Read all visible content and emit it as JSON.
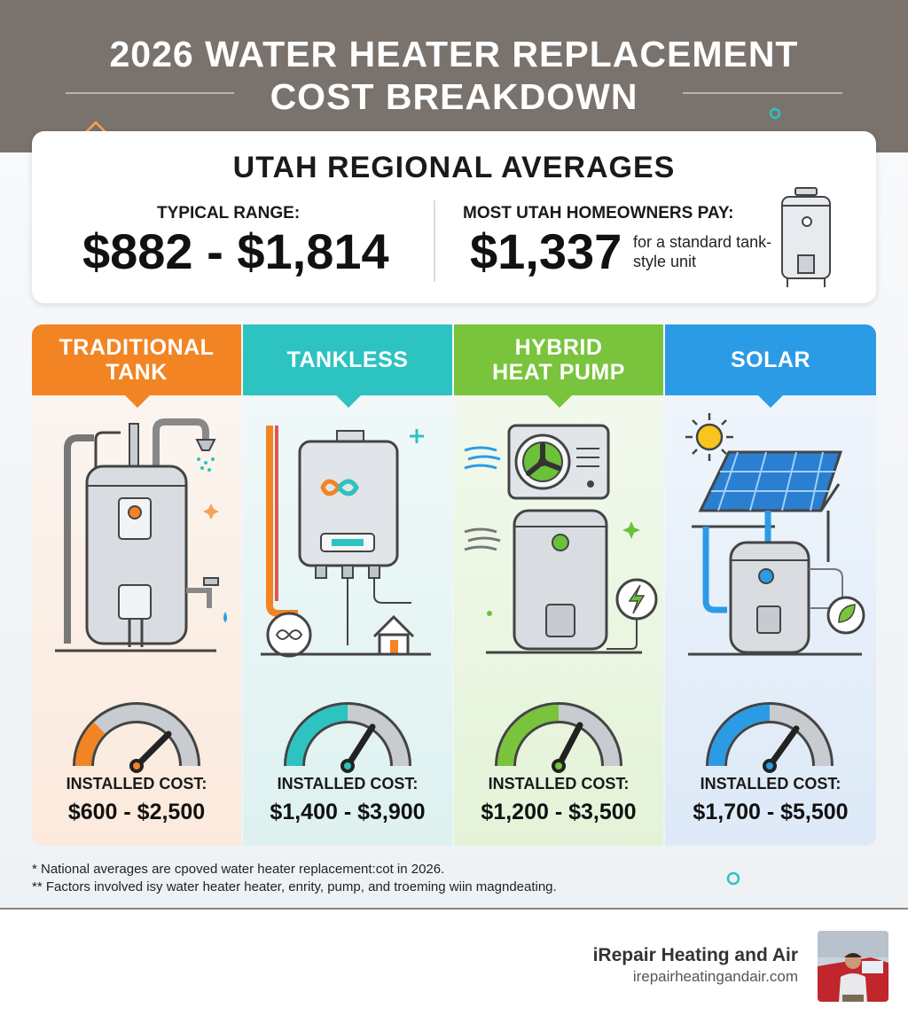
{
  "header": {
    "title_line1": "2026 WATER HEATER REPLACEMENT",
    "title_line2": "COST BREAKDOWN"
  },
  "summary": {
    "heading": "UTAH REGIONAL AVERAGES",
    "range_label": "TYPICAL RANGE:",
    "range_value": "$882 - $1,814",
    "typical_label": "MOST UTAH HOMEOWNERS PAY:",
    "typical_value": "$1,337",
    "typical_note": "for a standard tank-style unit"
  },
  "categories": [
    {
      "title": "TRADITIONAL\nTANK",
      "color": "#f28424",
      "cost_label": "INSTALLED COST:",
      "cost_value": "$600 - $2,500",
      "gauge_level": 0.25,
      "icon": "water-heater-tank-icon"
    },
    {
      "title": "TANKLESS",
      "color": "#2cc3c1",
      "cost_label": "INSTALLED COST:",
      "cost_value": "$1,400 - $3,900",
      "gauge_level": 0.5,
      "icon": "tankless-heater-icon"
    },
    {
      "title": "HYBRID\nHEAT PUMP",
      "color": "#79c43c",
      "cost_label": "INSTALLED COST:",
      "cost_value": "$1,200 - $3,500",
      "gauge_level": 0.5,
      "icon": "heat-pump-icon"
    },
    {
      "title": "SOLAR",
      "color": "#2b9be6",
      "cost_label": "INSTALLED COST:",
      "cost_value": "$1,700 - $5,500",
      "gauge_level": 0.5,
      "icon": "solar-heater-icon"
    }
  ],
  "footnotes": {
    "line1": "* National averages are cpoved water heater replacement:cot in 2026.",
    "line2": "** Factors involved isy water heater heater, enrity, pump, and troeming wiin magndeating."
  },
  "footer": {
    "company": "iRepair Heating and Air",
    "website": "irepairheatingandair.com"
  },
  "colors": {
    "header_bg": "#7a726c",
    "orange": "#f28424",
    "teal": "#2cc3c1",
    "green": "#79c43c",
    "blue": "#2b9be6"
  }
}
